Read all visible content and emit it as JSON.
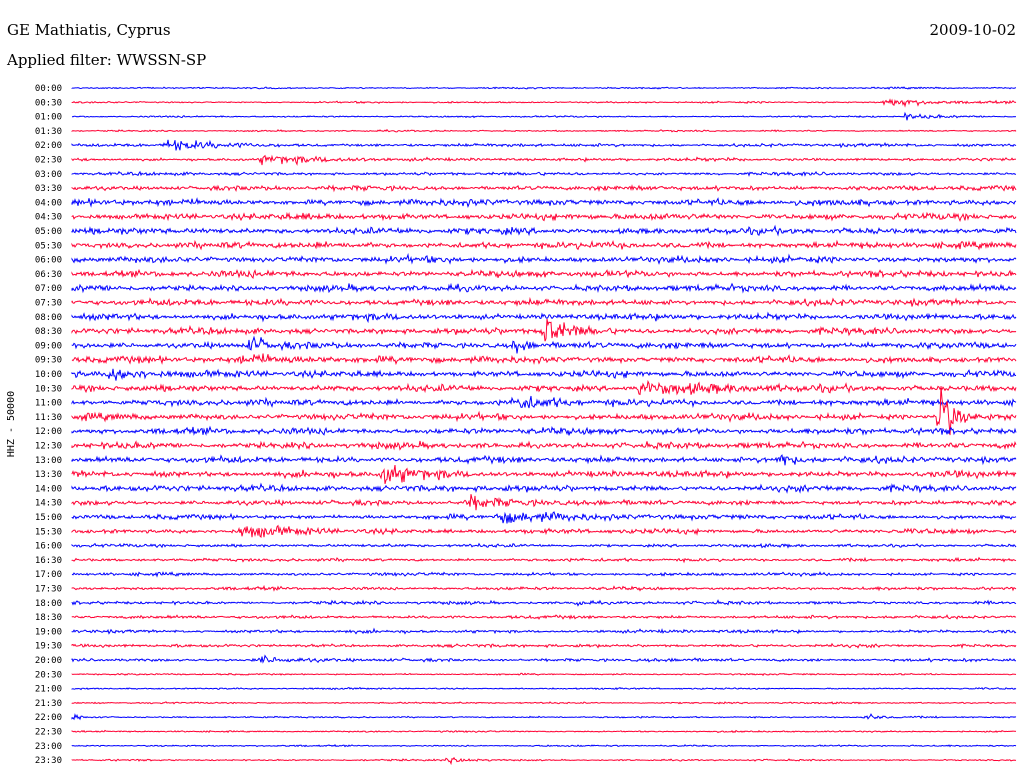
{
  "header": {
    "station": "GE Mathiatis, Cyprus",
    "date": "2009-10-02",
    "filter": "Applied filter: WWSSN-SP"
  },
  "channel_label": "HHZ - 50000",
  "colors": {
    "even_trace": "#0000ff",
    "odd_trace": "#ff0033",
    "background": "#ffffff"
  },
  "chart_data": {
    "type": "line",
    "title": "",
    "ylabel": "HHZ - 50000",
    "rows_per_hour": 2,
    "grid": false,
    "categories": [
      "00:00",
      "00:30",
      "01:00",
      "01:30",
      "02:00",
      "02:30",
      "03:00",
      "03:30",
      "04:00",
      "04:30",
      "05:00",
      "05:30",
      "06:00",
      "06:30",
      "07:00",
      "07:30",
      "08:00",
      "08:30",
      "09:00",
      "09:30",
      "10:00",
      "10:30",
      "11:00",
      "11:30",
      "12:00",
      "12:30",
      "13:00",
      "13:30",
      "14:00",
      "14:30",
      "15:00",
      "15:30",
      "16:00",
      "16:30",
      "17:00",
      "17:30",
      "18:00",
      "18:30",
      "19:00",
      "19:30",
      "20:00",
      "20:30",
      "21:00",
      "21:30",
      "22:00",
      "22:30",
      "23:00",
      "23:30"
    ],
    "noise_level": [
      1,
      1,
      1,
      1,
      2,
      2,
      2,
      3,
      4,
      4,
      4,
      4,
      4,
      4,
      4,
      4,
      4,
      4,
      4,
      4,
      4,
      4,
      4,
      4,
      4,
      4,
      4,
      4,
      4,
      3,
      3,
      3,
      2,
      2,
      2,
      2,
      2,
      2,
      2,
      2,
      2,
      1,
      1,
      1,
      1,
      1,
      1,
      1
    ],
    "events": [
      {
        "row": 1,
        "at": 0.86,
        "amp": 6,
        "dur": 0.05
      },
      {
        "row": 2,
        "at": 0.88,
        "amp": 4,
        "dur": 0.03
      },
      {
        "row": 4,
        "at": 0.1,
        "amp": 8,
        "dur": 0.04
      },
      {
        "row": 5,
        "at": 0.2,
        "amp": 6,
        "dur": 0.05
      },
      {
        "row": 19,
        "at": 0.18,
        "amp": 6,
        "dur": 0.06
      },
      {
        "row": 20,
        "at": 0.04,
        "amp": 10,
        "dur": 0.03
      },
      {
        "row": 17,
        "at": 0.5,
        "amp": 24,
        "dur": 0.02
      },
      {
        "row": 18,
        "at": 0.19,
        "amp": 18,
        "dur": 0.01
      },
      {
        "row": 18,
        "at": 0.47,
        "amp": 12,
        "dur": 0.01
      },
      {
        "row": 23,
        "at": 0.92,
        "amp": 60,
        "dur": 0.01
      },
      {
        "row": 26,
        "at": 0.75,
        "amp": 12,
        "dur": 0.01
      },
      {
        "row": 27,
        "at": 0.33,
        "amp": 14,
        "dur": 0.03
      },
      {
        "row": 29,
        "at": 0.42,
        "amp": 10,
        "dur": 0.04
      },
      {
        "row": 22,
        "at": 0.47,
        "amp": 10,
        "dur": 0.03
      },
      {
        "row": 21,
        "at": 0.6,
        "amp": 8,
        "dur": 0.08
      },
      {
        "row": 44,
        "at": 0.0,
        "amp": 6,
        "dur": 0.01
      },
      {
        "row": 44,
        "at": 0.84,
        "amp": 6,
        "dur": 0.01
      },
      {
        "row": 36,
        "at": 0.53,
        "amp": 7,
        "dur": 0.01
      },
      {
        "row": 31,
        "at": 0.18,
        "amp": 7,
        "dur": 0.05
      },
      {
        "row": 30,
        "at": 0.45,
        "amp": 7,
        "dur": 0.08
      },
      {
        "row": 40,
        "at": 0.2,
        "amp": 5,
        "dur": 0.02
      },
      {
        "row": 47,
        "at": 0.4,
        "amp": 4,
        "dur": 0.02
      }
    ]
  }
}
